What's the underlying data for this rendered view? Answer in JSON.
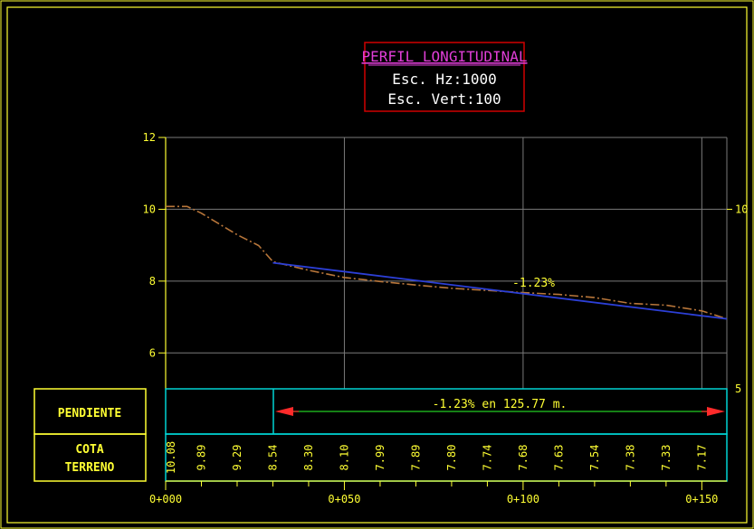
{
  "title_block": {
    "title": "PERFIL LONGITUDINAL",
    "scale_h": "Esc. Hz:1000",
    "scale_v": "Esc. Vert:100"
  },
  "chart_data": {
    "type": "line",
    "xlim": [
      0,
      157
    ],
    "ylim": [
      5,
      12
    ],
    "y_ticks_left": [
      "12",
      "10",
      "8",
      "6"
    ],
    "y_ticks_right": [
      "10",
      "5"
    ],
    "x_ticks": [
      "0+000",
      "0+050",
      "0+100",
      "0+150"
    ],
    "grid": true,
    "series": [
      {
        "kind": "terrain",
        "color": "#b8763a",
        "x": [
          0,
          6,
          10,
          20,
          26,
          30,
          40,
          50,
          60,
          70,
          80,
          90,
          100,
          110,
          120,
          130,
          140,
          150,
          157
        ],
        "y": [
          10.08,
          10.08,
          9.89,
          9.29,
          8.99,
          8.54,
          8.3,
          8.1,
          7.99,
          7.89,
          7.8,
          7.74,
          7.68,
          7.63,
          7.54,
          7.38,
          7.33,
          7.17,
          6.95
        ]
      },
      {
        "kind": "grade",
        "color": "#2c3fd6",
        "x": [
          30,
          157
        ],
        "y": [
          8.51,
          6.95
        ]
      }
    ],
    "annotations": [
      {
        "text": "-1.23%",
        "x": 97,
        "y": 7.85
      }
    ]
  },
  "pendiente": {
    "label": "PENDIENTE",
    "value_text": "-1.23% en 125.77 m.",
    "arrow_color": "#ff2a2a",
    "line_color": "#22cc22"
  },
  "cota": {
    "label_line1": "COTA",
    "label_line2": "TERRENO",
    "values": [
      "10.08",
      "9.89",
      "9.29",
      "8.54",
      "8.30",
      "8.10",
      "7.99",
      "7.89",
      "7.80",
      "7.74",
      "7.68",
      "7.63",
      "7.54",
      "7.38",
      "7.33",
      "7.17"
    ],
    "stations": [
      0,
      10,
      20,
      30,
      40,
      50,
      60,
      70,
      80,
      90,
      100,
      110,
      120,
      130,
      140,
      150
    ]
  },
  "colors": {
    "frame": "#ffff33",
    "grid": "#7a7a7a",
    "title_box": "#d00000",
    "title_text": "#e13ed8",
    "cyan": "#00d4d4",
    "text": "#ffff33"
  }
}
